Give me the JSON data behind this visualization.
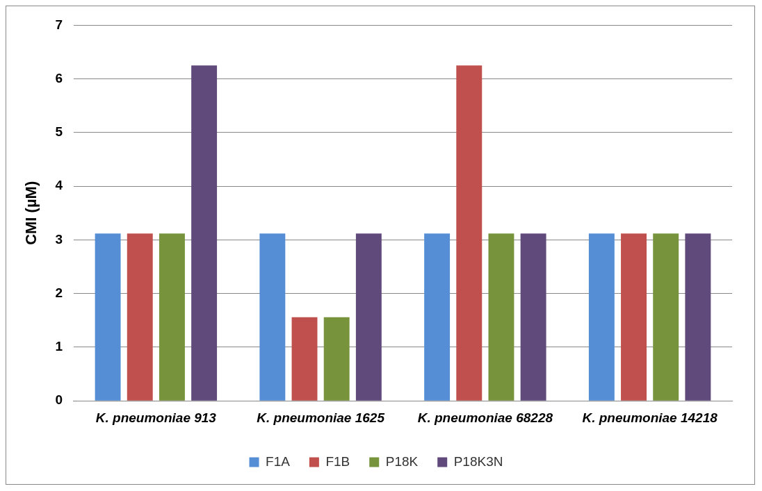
{
  "chart_data": {
    "type": "bar",
    "ylabel": "CMI (µM)",
    "categories": [
      "K. pneumoniae 913",
      "K. pneumoniae 1625",
      "K. pneumoniae 68228",
      "K. pneumoniae 14218"
    ],
    "series": [
      {
        "name": "F1A",
        "color": "#558ed5",
        "values": [
          3.12,
          3.12,
          3.12,
          3.12
        ]
      },
      {
        "name": "F1B",
        "color": "#c0504d",
        "values": [
          3.12,
          1.56,
          6.25,
          3.12
        ]
      },
      {
        "name": "P18K",
        "color": "#77933c",
        "values": [
          3.12,
          1.56,
          3.12,
          3.12
        ]
      },
      {
        "name": "P18K3N",
        "color": "#604a7b",
        "values": [
          6.25,
          3.12,
          3.12,
          3.12
        ]
      }
    ],
    "ylim": [
      0,
      7
    ],
    "yticks": [
      0,
      1,
      2,
      3,
      4,
      5,
      6,
      7
    ],
    "grid": "y",
    "legend": "bottom"
  }
}
